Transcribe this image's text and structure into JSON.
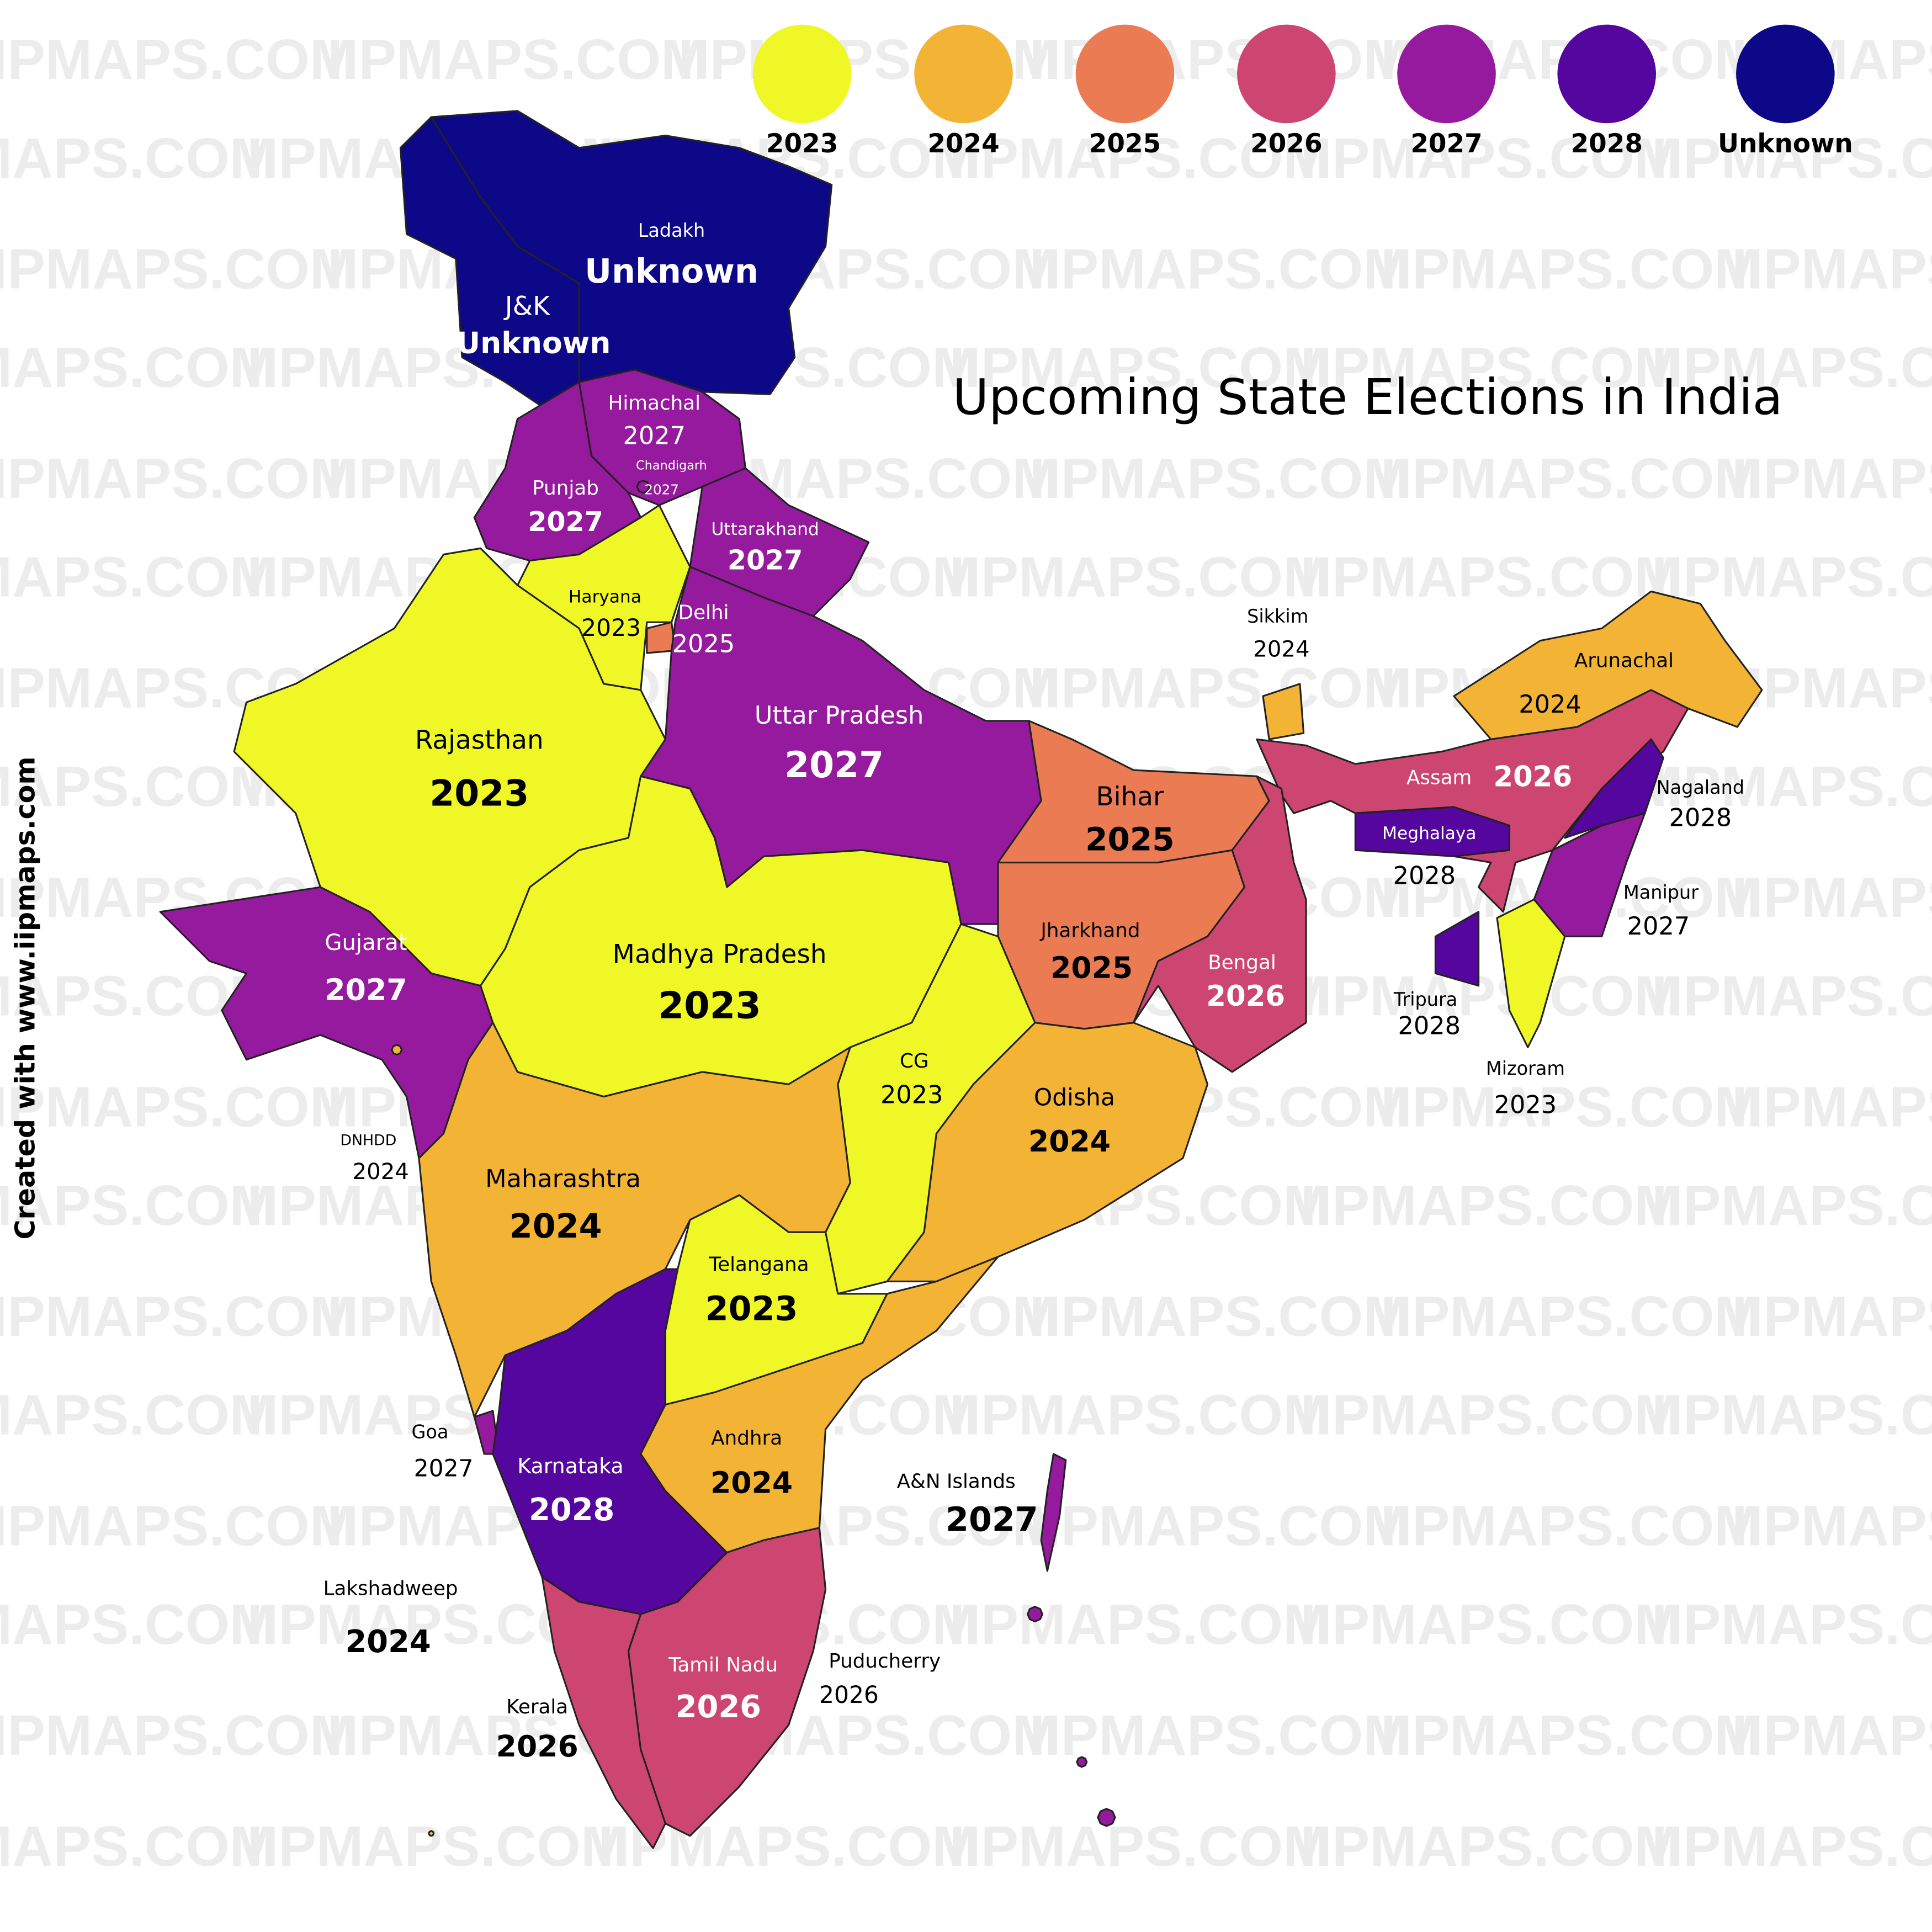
{
  "title": "Upcoming State Elections in India",
  "credit": "Created with www.iipmaps.com",
  "watermark": "IIPMAPS.COM",
  "legend": [
    {
      "label": "2023",
      "color": "#eff826"
    },
    {
      "label": "2024",
      "color": "#f3b335"
    },
    {
      "label": "2025",
      "color": "#eb7b53"
    },
    {
      "label": "2026",
      "color": "#cd4671"
    },
    {
      "label": "2027",
      "color": "#961a9d"
    },
    {
      "label": "2028",
      "color": "#55069f"
    },
    {
      "label": "Unknown",
      "color": "#0d0887"
    }
  ],
  "regions": [
    {
      "name": "Ladakh",
      "year": "Unknown"
    },
    {
      "name": "J&K",
      "year": "Unknown"
    },
    {
      "name": "Himachal",
      "year": "2027"
    },
    {
      "name": "Chandigarh",
      "year": "2027"
    },
    {
      "name": "Punjab",
      "year": "2027"
    },
    {
      "name": "Uttarakhand",
      "year": "2027"
    },
    {
      "name": "Haryana",
      "year": "2023"
    },
    {
      "name": "Delhi",
      "year": "2025"
    },
    {
      "name": "Uttar Pradesh",
      "year": "2027"
    },
    {
      "name": "Rajasthan",
      "year": "2023"
    },
    {
      "name": "Bihar",
      "year": "2025"
    },
    {
      "name": "Sikkim",
      "year": "2024"
    },
    {
      "name": "Arunachal",
      "year": "2024"
    },
    {
      "name": "Assam",
      "year": "2026"
    },
    {
      "name": "Nagaland",
      "year": "2028"
    },
    {
      "name": "Meghalaya",
      "year": "2028"
    },
    {
      "name": "Manipur",
      "year": "2027"
    },
    {
      "name": "Tripura",
      "year": "2028"
    },
    {
      "name": "Mizoram",
      "year": "2023"
    },
    {
      "name": "Jharkhand",
      "year": "2025"
    },
    {
      "name": "Bengal",
      "year": "2026"
    },
    {
      "name": "Gujarat",
      "year": "2027"
    },
    {
      "name": "Madhya Pradesh",
      "year": "2023"
    },
    {
      "name": "CG",
      "year": "2023"
    },
    {
      "name": "Odisha",
      "year": "2024"
    },
    {
      "name": "DNHDD",
      "year": "2024"
    },
    {
      "name": "Maharashtra",
      "year": "2024"
    },
    {
      "name": "Telangana",
      "year": "2023"
    },
    {
      "name": "Goa",
      "year": "2027"
    },
    {
      "name": "Karnataka",
      "year": "2028"
    },
    {
      "name": "Andhra",
      "year": "2024"
    },
    {
      "name": "A&N Islands",
      "year": "2027"
    },
    {
      "name": "Lakshadweep",
      "year": "2024"
    },
    {
      "name": "Puducherry",
      "year": "2026"
    },
    {
      "name": "Tamil Nadu",
      "year": "2026"
    },
    {
      "name": "Kerala",
      "year": "2026"
    }
  ]
}
